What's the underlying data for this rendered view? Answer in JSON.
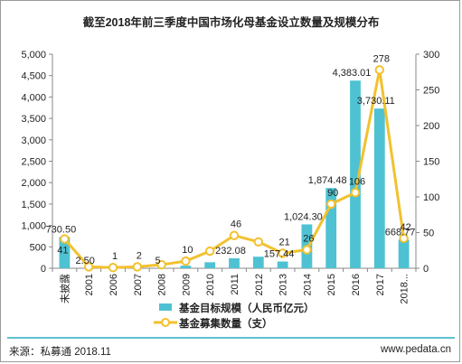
{
  "title": "截至2018年前三季度中国市场化母基金设立数量及规模分布",
  "source": "来源：私募通 2018.11",
  "website": "www.pedata.cn",
  "colors": {
    "bar": "#4ec2d2",
    "line": "#f2c12e",
    "frame": "#9a9a9a",
    "footer_line": "#5ec1d3"
  },
  "chart_data": {
    "type": "bar",
    "categories": [
      "未披露",
      "2001",
      "2006",
      "2007",
      "2008",
      "2009",
      "2010",
      "2011",
      "2012",
      "2013",
      "2014",
      "2015",
      "2016",
      "2017",
      "2018..."
    ],
    "series": [
      {
        "name": "基金目标规模（人民币亿元）",
        "type": "bar",
        "axis": "left",
        "values": [
          730.5,
          2.5,
          0,
          0,
          5,
          60,
          140,
          232.08,
          270,
          157.44,
          1024.3,
          1874.48,
          4383.01,
          3730.11,
          668.77
        ],
        "labels": [
          "730.50",
          "2.50",
          "",
          "",
          "5",
          "",
          "",
          "232.08",
          "",
          "157.44",
          "1,024.30",
          "1,874.48",
          "4,383.01",
          "3,730.11",
          "668.77"
        ]
      },
      {
        "name": "基金募集数量（支）",
        "type": "line",
        "axis": "right",
        "values": [
          41,
          2,
          1,
          2,
          5,
          10,
          24,
          46,
          37,
          21,
          26,
          90,
          106,
          278,
          42
        ],
        "labels": [
          "41",
          "",
          "1",
          "2",
          "",
          "10",
          "",
          "46",
          "",
          "21",
          "26",
          "90",
          "106",
          "278",
          "42"
        ]
      }
    ],
    "left_axis": {
      "ylim": [
        0,
        5000
      ],
      "ticks": [
        "0",
        "500",
        "1,000",
        "1,500",
        "2,000",
        "2,500",
        "3,000",
        "3,500",
        "4,000",
        "4,500",
        "5,000"
      ]
    },
    "right_axis": {
      "ylim": [
        0,
        300
      ],
      "ticks": [
        "0",
        "50",
        "100",
        "150",
        "200",
        "250",
        "300"
      ]
    },
    "legend_placement": "bottom-center",
    "grid": false
  }
}
